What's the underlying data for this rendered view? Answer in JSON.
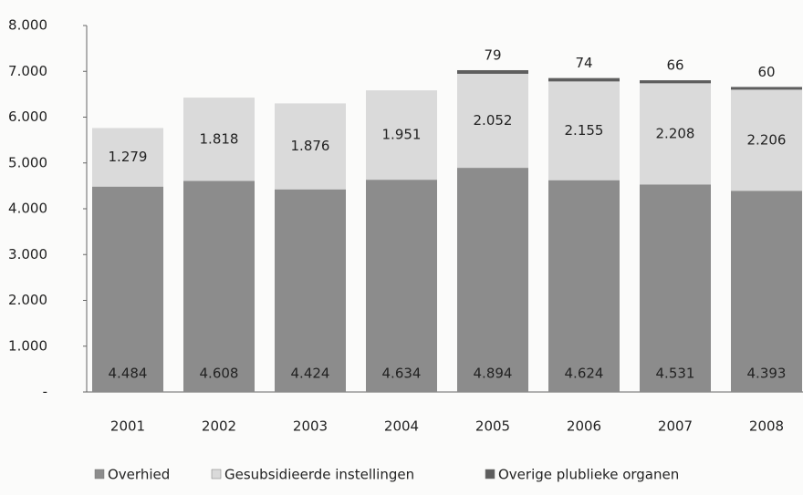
{
  "chart_data": {
    "type": "stacked_bar",
    "categories": [
      "2001",
      "2002",
      "2003",
      "2004",
      "2005",
      "2006",
      "2007",
      "2008"
    ],
    "series": [
      {
        "name": "Overhied",
        "color": "#8c8c8c",
        "values": [
          4484,
          4608,
          4424,
          4634,
          4894,
          4624,
          4531,
          4393
        ],
        "value_labels": [
          "4.484",
          "4.608",
          "4.424",
          "4.634",
          "4.894",
          "4.624",
          "4.531",
          "4.393"
        ]
      },
      {
        "name": "Gesubsidieerde instellingen",
        "color": "#dadada",
        "values": [
          1279,
          1818,
          1876,
          1951,
          2052,
          2155,
          2208,
          2206
        ],
        "value_labels": [
          "1.279",
          "1.818",
          "1.876",
          "1.951",
          "2.052",
          "2.155",
          "2.208",
          "2.206"
        ]
      },
      {
        "name": "Overige plublieke organen",
        "color": "#5e5e5e",
        "values": [
          null,
          null,
          null,
          null,
          79,
          74,
          66,
          60
        ]
      }
    ],
    "ylim": [
      0,
      8000
    ],
    "yticks": [
      {
        "value": 0,
        "label": "-"
      },
      {
        "value": 1000,
        "label": "1.000"
      },
      {
        "value": 2000,
        "label": "2.000"
      },
      {
        "value": 3000,
        "label": "3.000"
      },
      {
        "value": 4000,
        "label": "4.000"
      },
      {
        "value": 5000,
        "label": "5.000"
      },
      {
        "value": 6000,
        "label": "6.000"
      },
      {
        "value": 7000,
        "label": "7.000"
      },
      {
        "value": 8000,
        "label": "8.000"
      }
    ],
    "grid": false,
    "legend": "bottom"
  }
}
